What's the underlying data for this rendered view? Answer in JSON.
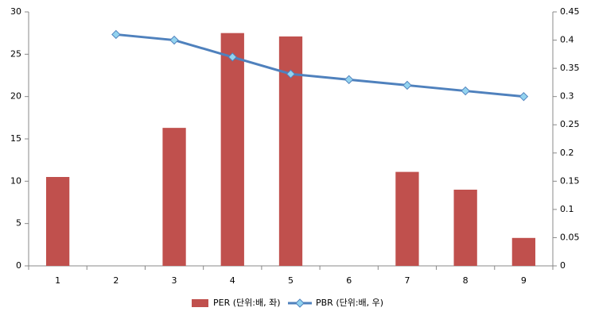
{
  "chart_data": {
    "type": "bar",
    "categories": [
      "1",
      "2",
      "3",
      "4",
      "5",
      "6",
      "7",
      "8",
      "9"
    ],
    "series": [
      {
        "name": "PER (단위:배, 좌)",
        "type": "bar",
        "color": "#c0504d",
        "values": [
          10.5,
          null,
          16.3,
          27.5,
          27.1,
          null,
          11.1,
          9.0,
          3.3
        ]
      },
      {
        "name": "PBR (단위:배, 우)",
        "type": "line",
        "axis": "y2",
        "color": "#4f81bd",
        "marker_color": "#93d3ef",
        "values": [
          null,
          0.41,
          0.4,
          0.37,
          0.34,
          0.33,
          0.32,
          0.31,
          0.3
        ]
      }
    ],
    "ylim": [
      0,
      30
    ],
    "yticks": [
      0,
      5,
      10,
      15,
      20,
      25,
      30
    ],
    "y2lim": [
      0,
      0.45
    ],
    "y2ticks": [
      0,
      0.05,
      0.1,
      0.15,
      0.2,
      0.25,
      0.3,
      0.35,
      0.4,
      0.45
    ],
    "legend": "bottom"
  }
}
